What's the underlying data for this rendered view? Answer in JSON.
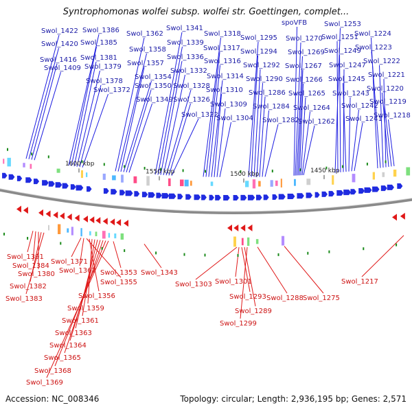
{
  "title": "Syntrophomonas wolfei subsp. wolfei str. Goettingen, complet...",
  "accession": "Accession: NC_008346",
  "summary": "Topology: circular; Length: 2,936,195 bp; Genes: 2,571",
  "colors": {
    "forward": "#1f2be0",
    "reverse": "#e01818",
    "backbone": "#8a8a8a",
    "rna": "#1a8a1a"
  },
  "ticks": [
    {
      "label": "1600 kbp",
      "pos": 1600
    },
    {
      "label": "1550 kbp",
      "pos": 1550
    },
    {
      "label": "1500 kbp",
      "pos": 1500
    },
    {
      "label": "1450 kbp",
      "pos": 1450
    }
  ],
  "top_labels": [
    "Swol_1422",
    "Swol_1420",
    "Swol_1416",
    "Swol_1409",
    "Swol_1386",
    "Swol_1385",
    "Swol_1381",
    "Swol_1379",
    "Swol_1378",
    "Swol_1372",
    "Swol_1362",
    "Swol_1358",
    "Swol_1357",
    "Swol_1354",
    "Swol_1350",
    "Swol_1349",
    "Swol_1341",
    "Swol_1339",
    "Swol_1336",
    "Swol_1332",
    "Swol_1328",
    "Swol_1326",
    "Swol_1322",
    "Swol_1318",
    "Swol_1317",
    "Swol_1316",
    "Swol_1314",
    "Swol_1310",
    "Swol_1309",
    "Swol_1304",
    "Swol_1295",
    "Swol_1294",
    "Swol_1292",
    "Swol_1290",
    "Swol_1286",
    "Swol_1284",
    "Swol_1282",
    "spoVFB",
    "Swol_1270",
    "Swol_1269",
    "Swol_1267",
    "Swol_1266",
    "Swol_1265",
    "Swol_1264",
    "Swol_1262",
    "Swol_1253",
    "Swol_1251",
    "Swol_1249",
    "Swol_1247",
    "Swol_1245",
    "Swol_1243",
    "Swol_1242",
    "Swol_1241",
    "Swol_1224",
    "Swol_1223",
    "Swol_1222",
    "Swol_1221",
    "Swol_1220",
    "Swol_1219",
    "Swol_1218"
  ],
  "bottom_labels": [
    "Swol_1391",
    "Swol_1384",
    "Swol_1380",
    "Swol_1382",
    "Swol_1383",
    "Swol_1371",
    "Swol_1367",
    "Swol_1355",
    "Swol_1353",
    "Swol_1356",
    "Swol_1359",
    "Swol_1361",
    "Swol_1363",
    "Swol_1364",
    "Swol_1365",
    "Swol_1368",
    "Swol_1369",
    "Swol_1343",
    "Swol_1303",
    "Swol_1301",
    "Swol_1293",
    "Swol_1289",
    "Swol_1299",
    "Swol_1288",
    "Swol_1275",
    "Swol_1217"
  ]
}
